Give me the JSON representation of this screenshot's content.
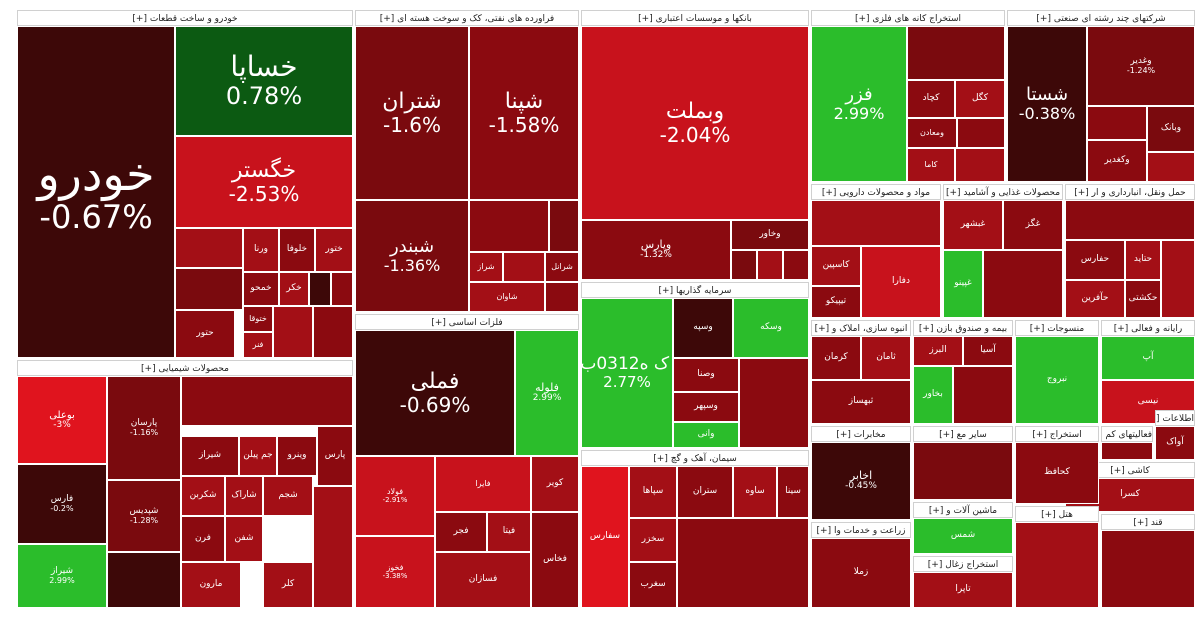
{
  "colors": {
    "deep_loss": "#3d0808",
    "loss": "#8b0a10",
    "strong_loss": "#c8121c",
    "gain": "#2bbd2b",
    "strong_gain": "#0c5a12"
  },
  "sectors": [
    {
      "id": "auto",
      "title": "خودرو و ساخت قطعات [+]",
      "tiles": [
        {
          "symbol": "خودرو",
          "change": "-0.67%",
          "color": "#3d0808"
        },
        {
          "symbol": "خساپا",
          "change": "0.78%",
          "color": "#0c5a12"
        },
        {
          "symbol": "خگستر",
          "change": "-2.53%",
          "color": "#c8121c"
        },
        {
          "symbol": "ورنا",
          "change": "",
          "color": "#a30f16"
        },
        {
          "symbol": "خلوفا",
          "change": "",
          "color": "#8b0a10"
        },
        {
          "symbol": "ختور",
          "change": "",
          "color": "#a30f16"
        },
        {
          "symbol": "خمحو",
          "change": "",
          "color": "#8b0a10"
        },
        {
          "symbol": "خکر",
          "change": "",
          "color": "#a30f16"
        },
        {
          "symbol": "ختوقا",
          "change": "",
          "color": "#8b0a10"
        },
        {
          "symbol": "حتور",
          "change": "",
          "color": "#8b0a10"
        },
        {
          "symbol": "فنر",
          "change": "",
          "color": "#a30f16"
        }
      ]
    },
    {
      "id": "oil",
      "title": "فراورده های نفتی، کک و سوخت هسته ای [+]",
      "tiles": [
        {
          "symbol": "شتران",
          "change": "-1.6%",
          "color": "#7a0a0e"
        },
        {
          "symbol": "شپنا",
          "change": "-1.58%",
          "color": "#8b0a10"
        },
        {
          "symbol": "شبندر",
          "change": "-1.36%",
          "color": "#7a0a0e"
        },
        {
          "symbol": "شراز",
          "change": "",
          "color": "#a30f16"
        },
        {
          "symbol": "شرانل",
          "change": "",
          "color": "#8b0a10"
        },
        {
          "symbol": "شاوان",
          "change": "",
          "color": "#a30f16"
        }
      ]
    },
    {
      "id": "banks",
      "title": "بانکها و موسسات اعتباری [+]",
      "tiles": [
        {
          "symbol": "وبملت",
          "change": "-2.04%",
          "color": "#c8121c"
        },
        {
          "symbol": "وپارس",
          "change": "-1.32%",
          "color": "#8b0a10"
        },
        {
          "symbol": "وخاور",
          "change": "",
          "color": "#7a0a0e"
        }
      ]
    },
    {
      "id": "metals",
      "title": "استخراج کانه های فلزی [+]",
      "tiles": [
        {
          "symbol": "فزر",
          "change": "2.99%",
          "color": "#2bbd2b"
        },
        {
          "symbol": "کچاد",
          "change": "",
          "color": "#8b0a10"
        },
        {
          "symbol": "کگل",
          "change": "",
          "color": "#a30f16"
        },
        {
          "symbol": "ومعادن",
          "change": "",
          "color": "#8b0a10"
        },
        {
          "symbol": "کاما",
          "change": "",
          "color": "#a30f16"
        }
      ]
    },
    {
      "id": "diversified",
      "title": "شرکتهای چند رشته ای صنعتی [+]",
      "tiles": [
        {
          "symbol": "شستا",
          "change": "-0.38%",
          "color": "#3d0808"
        },
        {
          "symbol": "وغدیر",
          "change": "-1.24%",
          "color": "#7a0a0e"
        },
        {
          "symbol": "وکغدیر",
          "change": "",
          "color": "#8b0a10"
        },
        {
          "symbol": "وبانک",
          "change": "",
          "color": "#7a0a0e"
        }
      ]
    },
    {
      "id": "chemicals",
      "title": "محصولات شیمیایی [+]",
      "tiles": [
        {
          "symbol": "بوعلی",
          "change": "-3%",
          "color": "#e0141e"
        },
        {
          "symbol": "پارسان",
          "change": "-1.16%",
          "color": "#7a0a0e"
        },
        {
          "symbol": "فارس",
          "change": "-0.2%",
          "color": "#3d0808"
        },
        {
          "symbol": "شپدیس",
          "change": "-1.28%",
          "color": "#7a0a0e"
        },
        {
          "symbol": "شیراز",
          "change": "2.99%",
          "color": "#2bbd2b"
        },
        {
          "symbol": "پارس",
          "change": "",
          "color": "#8b0a10"
        },
        {
          "symbol": "شیراز",
          "change": "",
          "color": "#8b0a10"
        },
        {
          "symbol": "جم پیلن",
          "change": "",
          "color": "#a30f16"
        },
        {
          "symbol": "وینرو",
          "change": "",
          "color": "#8b0a10"
        },
        {
          "symbol": "شکربن",
          "change": "",
          "color": "#a30f16"
        },
        {
          "symbol": "شجم",
          "change": "",
          "color": "#a30f16"
        },
        {
          "symbol": "شاراک",
          "change": "",
          "color": "#a30f16"
        },
        {
          "symbol": "فرن",
          "change": "",
          "color": "#8b0a10"
        },
        {
          "symbol": "شفن",
          "change": "",
          "color": "#a30f16"
        },
        {
          "symbol": "مارون",
          "change": "",
          "color": "#a30f16"
        },
        {
          "symbol": "کلر",
          "change": "",
          "color": "#a30f16"
        }
      ]
    },
    {
      "id": "basic_metals",
      "title": "فلزات اساسی [+]",
      "tiles": [
        {
          "symbol": "فملی",
          "change": "-0.69%",
          "color": "#3d0808"
        },
        {
          "symbol": "فولاد",
          "change": "-2.91%",
          "color": "#c8121c"
        },
        {
          "symbol": "فایرا",
          "change": "",
          "color": "#c8121c"
        },
        {
          "symbol": "فخوز",
          "change": "-3.38%",
          "color": "#c8121c"
        },
        {
          "symbol": "کویر",
          "change": "",
          "color": "#a30f16"
        },
        {
          "symbol": "فجر",
          "change": "",
          "color": "#8b0a10"
        },
        {
          "symbol": "فیتا",
          "change": "",
          "color": "#a30f16"
        },
        {
          "symbol": "فسازان",
          "change": "",
          "color": "#a30f16"
        },
        {
          "symbol": "فخاس",
          "change": "",
          "color": "#8b0a10"
        },
        {
          "symbol": "فلوله",
          "change": "2.99%",
          "color": "#2bbd2b"
        }
      ]
    },
    {
      "id": "investment",
      "title": "سرمایه گذاریها [+]",
      "tiles": [
        {
          "symbol": "س ک ه0312ب01",
          "change": "2.77%",
          "color": "#2bbd2b"
        },
        {
          "symbol": "وسپه",
          "change": "",
          "color": "#3d0808"
        },
        {
          "symbol": "وسکه",
          "change": "",
          "color": "#2bbd2b"
        },
        {
          "symbol": "وصنا",
          "change": "",
          "color": "#8b0a10"
        },
        {
          "symbol": "وسپهر",
          "change": "",
          "color": "#8b0a10"
        },
        {
          "symbol": "وانی",
          "change": "",
          "color": "#2bbd2b"
        }
      ]
    },
    {
      "id": "cement",
      "title": "سیمان، آهک و گچ [+]",
      "tiles": [
        {
          "symbol": "سپاها",
          "change": "",
          "color": "#a30f16"
        },
        {
          "symbol": "ستران",
          "change": "",
          "color": "#8b0a10"
        },
        {
          "symbol": "ساوه",
          "change": "",
          "color": "#a30f16"
        },
        {
          "symbol": "سینا",
          "change": "",
          "color": "#8b0a10"
        },
        {
          "symbol": "سخزر",
          "change": "",
          "color": "#a30f16"
        },
        {
          "symbol": "سغرب",
          "change": "",
          "color": "#8b0a10"
        },
        {
          "symbol": "سفارس",
          "change": "",
          "color": "#e0141e"
        }
      ]
    },
    {
      "id": "pharma",
      "title": "مواد و محصولات دارویی [+]",
      "tiles": [
        {
          "symbol": "کاسپین",
          "change": "",
          "color": "#a30f16"
        },
        {
          "symbol": "تیپیکو",
          "change": "",
          "color": "#8b0a10"
        },
        {
          "symbol": "دفارا",
          "change": "",
          "color": "#c8121c"
        }
      ]
    },
    {
      "id": "food",
      "title": "محصولات غذایی و آشامید [+]",
      "tiles": [
        {
          "symbol": "غبشهر",
          "change": "",
          "color": "#a30f16"
        },
        {
          "symbol": "غگز",
          "change": "",
          "color": "#8b0a10"
        },
        {
          "symbol": "غپینو",
          "change": "",
          "color": "#2bbd2b"
        }
      ]
    },
    {
      "id": "transport",
      "title": "حمل ونقل، انبارداری و ار [+]",
      "tiles": [
        {
          "symbol": "حفارس",
          "change": "",
          "color": "#8b0a10"
        },
        {
          "symbol": "حتاید",
          "change": "",
          "color": "#a30f16"
        },
        {
          "symbol": "حکشتی",
          "change": "",
          "color": "#8b0a10"
        },
        {
          "symbol": "حآفرین",
          "change": "",
          "color": "#a30f16"
        }
      ]
    },
    {
      "id": "realestate",
      "title": "انبوه سازی، املاک و [+]",
      "tiles": [
        {
          "symbol": "ثامان",
          "change": "",
          "color": "#a30f16"
        },
        {
          "symbol": "کرمان",
          "change": "",
          "color": "#8b0a10"
        },
        {
          "symbol": "ثبهساز",
          "change": "",
          "color": "#8b0a10"
        }
      ]
    },
    {
      "id": "funds",
      "title": "بیمه و صندوق بازن [+]",
      "tiles": [
        {
          "symbol": "آسیا",
          "change": "",
          "color": "#8b0a10"
        },
        {
          "symbol": "البرز",
          "change": "",
          "color": "#a30f16"
        },
        {
          "symbol": "بخاور",
          "change": "",
          "color": "#2bbd2b"
        }
      ]
    },
    {
      "id": "textiles",
      "title": "منسوجات [+]",
      "tiles": [
        {
          "symbol": "نبروج",
          "change": "",
          "color": "#2bbd2b"
        }
      ]
    },
    {
      "id": "it",
      "title": "رایانه و فعالی [+]",
      "tiles": [
        {
          "symbol": "آپ",
          "change": "",
          "color": "#2bbd2b"
        },
        {
          "symbol": "نیسی",
          "change": "",
          "color": "#c8121c"
        }
      ]
    },
    {
      "id": "telecom",
      "title": "مخابرات [+]",
      "tiles": [
        {
          "symbol": "اخابر",
          "change": "-0.45%",
          "color": "#3d0808"
        }
      ]
    },
    {
      "id": "tiles",
      "title": "کاشی [+]",
      "tiles": [
        {
          "symbol": "کسرا",
          "change": "",
          "color": "#a30f16"
        }
      ]
    },
    {
      "id": "info",
      "title": "اطلاعات [+]",
      "tiles": [
        {
          "symbol": "آواک",
          "change": "",
          "color": "#8b0a10"
        }
      ]
    },
    {
      "id": "misc1",
      "title": "استخراج [+]",
      "tiles": [
        {
          "symbol": "کحافظ",
          "change": "",
          "color": "#8b0a10"
        }
      ]
    },
    {
      "id": "misc2",
      "title": "سایر مع [+]",
      "tiles": []
    },
    {
      "id": "misc3",
      "title": "ماشین آلات و [+]",
      "tiles": [
        {
          "symbol": "شمس",
          "change": "",
          "color": "#2bbd2b"
        }
      ]
    },
    {
      "id": "misc4",
      "title": "زراعت و خدمات وا [+]",
      "tiles": [
        {
          "symbol": "زملا",
          "change": "",
          "color": "#8b0a10"
        }
      ]
    },
    {
      "id": "misc5",
      "title": "فعالیتهای کم [+]",
      "tiles": []
    },
    {
      "id": "misc6",
      "title": "استخراج زغال [+]",
      "tiles": [
        {
          "symbol": "تاپرا",
          "change": "",
          "color": "#a30f16"
        }
      ]
    },
    {
      "id": "misc7",
      "title": "هتل [+]",
      "tiles": []
    },
    {
      "id": "misc8",
      "title": "قند [+]",
      "tiles": []
    }
  ]
}
